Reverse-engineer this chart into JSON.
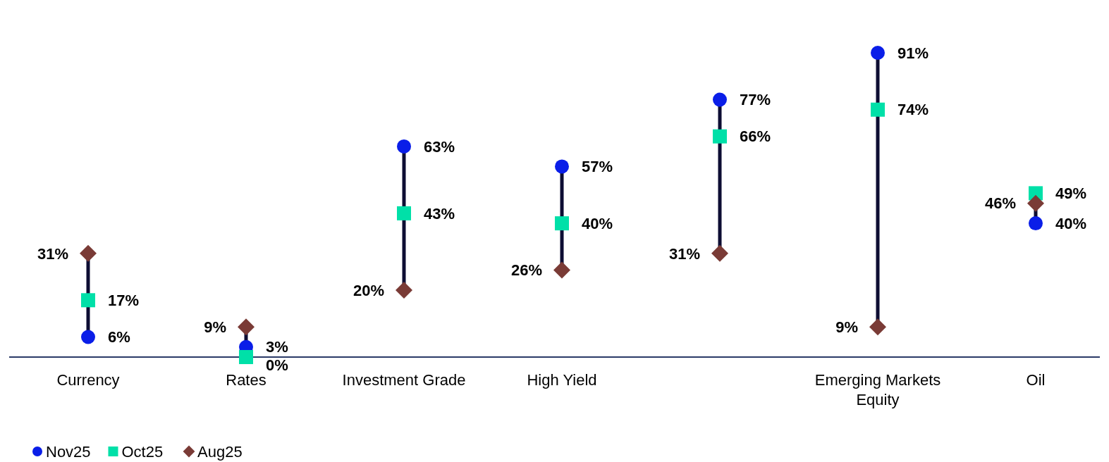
{
  "chart_data": {
    "type": "scatter",
    "categories": [
      "Currency",
      "Rates",
      "Investment Grade",
      "High Yield",
      null,
      "Emerging Markets Equity",
      "Oil"
    ],
    "series": [
      {
        "name": "Nov25",
        "color": "#0a1ee8",
        "marker": "circle",
        "values": [
          6,
          3,
          63,
          57,
          77,
          91,
          40
        ],
        "value_labels": [
          "6%",
          "3%",
          "63%",
          "57%",
          "77%",
          "91%",
          "40%"
        ]
      },
      {
        "name": "Oct25",
        "color": "#00e0a8",
        "marker": "square",
        "values": [
          17,
          0,
          43,
          40,
          66,
          74,
          49
        ],
        "value_labels": [
          "17%",
          "0%",
          "43%",
          "40%",
          "66%",
          "74%",
          "49%"
        ]
      },
      {
        "name": "Aug25",
        "color": "#7a3b36",
        "marker": "diamond",
        "values": [
          31,
          9,
          20,
          26,
          31,
          9,
          46
        ],
        "value_labels": [
          "31%",
          "9%",
          "20%",
          "26%",
          "31%",
          "9%",
          "46%"
        ]
      }
    ],
    "legend": "bottom left"
  }
}
